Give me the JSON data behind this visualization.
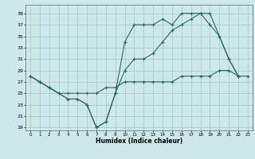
{
  "title": "",
  "xlabel": "Humidex (Indice chaleur)",
  "background_color": "#cce8e8",
  "grid_color": "#aacccc",
  "line_color": "#2a6b5e",
  "xlim": [
    -0.5,
    23.5
  ],
  "ylim": [
    18.5,
    40.5
  ],
  "yticks": [
    19,
    21,
    23,
    25,
    27,
    29,
    31,
    33,
    35,
    37,
    39
  ],
  "xticks": [
    0,
    1,
    2,
    3,
    4,
    5,
    6,
    7,
    8,
    9,
    10,
    11,
    12,
    13,
    14,
    15,
    16,
    17,
    18,
    19,
    20,
    21,
    22,
    23
  ],
  "line1_x": [
    0,
    1,
    2,
    3,
    4,
    5,
    6,
    7,
    8,
    9,
    10,
    11,
    12,
    13,
    14,
    15,
    16,
    17,
    18,
    19,
    20,
    21,
    22
  ],
  "line1_y": [
    28,
    27,
    26,
    25,
    24,
    24,
    23,
    19,
    20,
    25,
    34,
    37,
    37,
    37,
    38,
    37,
    39,
    39,
    39,
    39,
    35,
    31,
    28
  ],
  "line2_x": [
    0,
    1,
    2,
    3,
    4,
    5,
    6,
    7,
    8,
    9,
    10,
    11,
    12,
    13,
    14,
    15,
    16,
    17,
    18,
    19,
    20,
    21,
    22
  ],
  "line2_y": [
    28,
    27,
    26,
    25,
    24,
    24,
    23,
    19,
    20,
    25,
    29,
    31,
    31,
    32,
    34,
    36,
    37,
    38,
    39,
    37,
    35,
    31,
    28
  ],
  "line3_x": [
    0,
    1,
    2,
    3,
    4,
    5,
    6,
    7,
    8,
    9,
    10,
    11,
    12,
    13,
    14,
    15,
    16,
    17,
    18,
    19,
    20,
    21,
    22,
    23
  ],
  "line3_y": [
    28,
    27,
    26,
    25,
    25,
    25,
    25,
    25,
    26,
    26,
    27,
    27,
    27,
    27,
    27,
    27,
    28,
    28,
    28,
    28,
    29,
    29,
    28,
    28
  ]
}
